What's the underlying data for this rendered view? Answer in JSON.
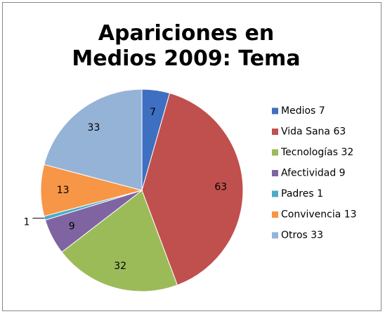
{
  "chart_data": {
    "type": "pie",
    "title": "Apariciones en Medios 2009: Tema",
    "categories": [
      "Medios 7",
      "Vida Sana 63",
      "Tecnologías 32",
      "Afectividad 9",
      "Padres 1",
      "Convivencia 13",
      "Otros 33"
    ],
    "values": [
      7,
      63,
      32,
      9,
      1,
      13,
      33
    ],
    "colors": [
      "#3f6fc0",
      "#c0504d",
      "#9bbb59",
      "#8064a2",
      "#4bacc6",
      "#f79646",
      "#95b3d7"
    ],
    "legend": "right"
  }
}
